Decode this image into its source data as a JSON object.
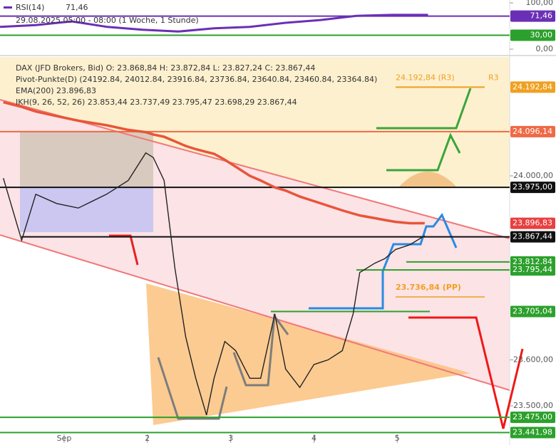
{
  "chart_data": [
    {
      "type": "line",
      "title": "RSI(14)",
      "subtitle": "29.08.2025 05:00 - 08:00 (1 Woche, 1 Stunde)",
      "current_label": "71,46",
      "x": [
        0.23,
        0.66,
        1.09,
        1.52,
        1.94,
        2.37,
        2.8,
        3.23,
        3.66,
        4.08,
        4.51,
        4.94,
        5.37
      ],
      "series": [
        {
          "name": "RSI(14)",
          "color": "#6a2fb5",
          "values": [
            48,
            52,
            60,
            48,
            42,
            38,
            45,
            48,
            57,
            63,
            72,
            74,
            74
          ]
        }
      ],
      "xlim": [
        0.23,
        6.35
      ],
      "ylim": [
        -13.8,
        106.2
      ],
      "yticks": [
        {
          "value": 100,
          "label": "100,00"
        },
        {
          "value": 0,
          "label": "0,00"
        }
      ],
      "levels": [
        {
          "value": 71.46,
          "label": "71,46",
          "color": "#6a2fb5"
        },
        {
          "value": 30,
          "label": "30,00",
          "color": "#2ca02c"
        }
      ]
    },
    {
      "type": "line",
      "title": "DAX (JFD Brokers, Bid)  O: 23.868,84  H: 23.872,84  L: 23.827,24  C: 23.867,44",
      "legend_lines": [
        "Pivot-Punkte(D)  (24192.84,  24012.84,  23916.84,  23736.84,  23640.84,  23460.84,  23364.84)",
        "EMA(200)  23.896,83",
        "IKH(9, 26, 52, 26)  23.853,44  23.737,49  23.795,47  23.698,29  23.867,44"
      ],
      "x": [
        0.27,
        0.49,
        0.66,
        0.91,
        1.17,
        1.51,
        1.77,
        1.98,
        2.07,
        2.2,
        2.33,
        2.46,
        2.58,
        2.71,
        2.8,
        2.93,
        3.06,
        3.23,
        3.36,
        3.53,
        3.66,
        3.83,
        4.0,
        4.17,
        4.34,
        4.47,
        4.55,
        4.73,
        4.85,
        4.98,
        5.15,
        5.33
      ],
      "series": [
        {
          "name": "DAX",
          "color": "#222222",
          "values": [
            23995,
            23860,
            23960,
            23940,
            23930,
            23960,
            23990,
            24050,
            24040,
            23990,
            23800,
            23650,
            23560,
            23480,
            23560,
            23640,
            23620,
            23560,
            23560,
            23700,
            23580,
            23540,
            23590,
            23600,
            23620,
            23700,
            23790,
            23810,
            23820,
            23840,
            23850,
            23870
          ]
        },
        {
          "name": "EMA(200)",
          "color": "#e8553a",
          "values": [
            24160,
            24150,
            24140,
            24130,
            24120,
            24110,
            24100,
            24095,
            24090,
            24085,
            24075,
            24065,
            24058,
            24052,
            24048,
            24035,
            24020,
            24000,
            23990,
            23975,
            23968,
            23955,
            23945,
            23935,
            23925,
            23918,
            23914,
            23908,
            23904,
            23900,
            23897,
            23897
          ]
        }
      ],
      "xlim": [
        0.23,
        6.35
      ],
      "ylim": [
        23414.9,
        24258.5
      ],
      "xticks": [
        {
          "value": 1,
          "label": "Sep"
        },
        2,
        3,
        4,
        5
      ],
      "yticks": [
        {
          "value": 24000,
          "label": "24.000,00"
        },
        {
          "value": 23600,
          "label": "23.600,00"
        },
        {
          "value": 23500,
          "label": "23.500,00"
        }
      ],
      "levels": [
        {
          "value": 24192.84,
          "label": "24.192,84",
          "color": "#f0a020"
        },
        {
          "value": 24096.14,
          "label": "24.096,14",
          "color": "#ef6a45"
        },
        {
          "value": 23975,
          "label": "23.975,00",
          "color": "#111111"
        },
        {
          "value": 23896.83,
          "label": "23.896,83",
          "color": "#e84040"
        },
        {
          "value": 23867.44,
          "label": "23.867,44",
          "color": "#111111"
        },
        {
          "value": 23812.84,
          "label": "23.812,84",
          "color": "#2ca02c"
        },
        {
          "value": 23795.44,
          "label": "23.795,44",
          "color": "#2ca02c"
        },
        {
          "value": 23705.04,
          "label": "23.705,04",
          "color": "#2ca02c"
        },
        {
          "value": 23475,
          "label": "23.475,00",
          "color": "#2ca02c"
        },
        {
          "value": 23441.98,
          "label": "23.441,98",
          "color": "#2ca02c"
        }
      ],
      "annotations": [
        {
          "value": 24192.84,
          "label": "24.192,84 (R3)"
        },
        {
          "value": 24192.84,
          "label": "R3"
        },
        {
          "value": 23736.84,
          "label": "23.736,84 (PP)"
        }
      ]
    }
  ]
}
